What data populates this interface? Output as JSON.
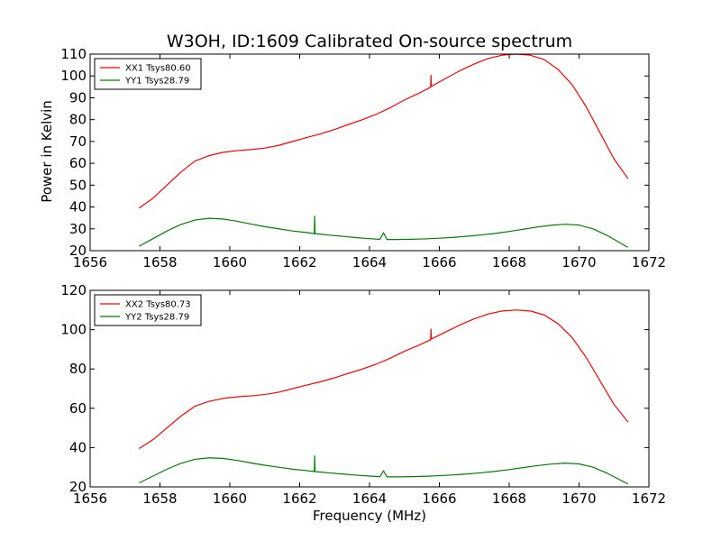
{
  "chart_data": [
    {
      "type": "line",
      "title": "W3OH, ID:1609 Calibrated On-source spectrum",
      "xlabel": "",
      "ylabel": "Power in Kelvin",
      "xlim": [
        1656,
        1672
      ],
      "ylim": [
        20,
        110
      ],
      "xticks": [
        1656,
        1658,
        1660,
        1662,
        1664,
        1666,
        1668,
        1670,
        1672
      ],
      "yticks": [
        20,
        30,
        40,
        50,
        60,
        70,
        80,
        90,
        100,
        110
      ],
      "grid": false,
      "legend": "top-left",
      "series": [
        {
          "name": "XX1 Tsys80.60",
          "color": "#ff0000",
          "x": [
            1657.4,
            1657.8,
            1658.2,
            1658.6,
            1659.0,
            1659.4,
            1659.8,
            1660.2,
            1660.6,
            1661.0,
            1661.4,
            1661.8,
            1662.2,
            1662.6,
            1663.0,
            1663.4,
            1663.8,
            1664.2,
            1664.6,
            1665.0,
            1665.4,
            1665.75,
            1665.76,
            1665.77,
            1665.8,
            1666.2,
            1666.6,
            1667.0,
            1667.4,
            1667.8,
            1668.2,
            1668.6,
            1669.0,
            1669.4,
            1669.8,
            1670.2,
            1670.6,
            1671.0,
            1671.4
          ],
          "y": [
            39.5,
            44,
            50,
            56,
            61,
            63.5,
            65,
            65.8,
            66.3,
            67,
            68.2,
            70,
            71.8,
            73.5,
            75.5,
            77.8,
            80,
            82.5,
            85.5,
            89,
            92,
            94.8,
            100.3,
            95.2,
            95.5,
            99,
            102.5,
            105.5,
            108,
            109.5,
            110,
            109.5,
            107.5,
            103,
            96,
            86,
            74,
            62,
            53
          ]
        },
        {
          "name": "YY1 Tsys28.79",
          "color": "#008000",
          "x": [
            1657.4,
            1657.8,
            1658.2,
            1658.6,
            1659.0,
            1659.4,
            1659.8,
            1660.2,
            1660.6,
            1661.0,
            1661.4,
            1661.8,
            1662.2,
            1662.42,
            1662.43,
            1662.44,
            1662.8,
            1663.2,
            1663.6,
            1664.0,
            1664.3,
            1664.4,
            1664.5,
            1664.8,
            1665.2,
            1665.6,
            1666.0,
            1666.4,
            1666.8,
            1667.2,
            1667.6,
            1668.0,
            1668.4,
            1668.8,
            1669.2,
            1669.6,
            1670.0,
            1670.4,
            1670.8,
            1671.4
          ],
          "y": [
            22,
            25.5,
            29,
            32,
            34,
            34.8,
            34.5,
            33.5,
            32.2,
            31,
            30,
            29,
            28.3,
            27.8,
            35.8,
            27.8,
            27.2,
            26.6,
            26,
            25.5,
            25.2,
            28.2,
            25.1,
            25.1,
            25.2,
            25.4,
            25.7,
            26.1,
            26.6,
            27.2,
            27.9,
            28.8,
            29.8,
            30.8,
            31.6,
            32.1,
            31.7,
            30,
            27,
            21.5
          ]
        }
      ]
    },
    {
      "type": "line",
      "title": "",
      "xlabel": "Frequency (MHz)",
      "ylabel": "",
      "xlim": [
        1656,
        1672
      ],
      "ylim": [
        20,
        120
      ],
      "xticks": [
        1656,
        1658,
        1660,
        1662,
        1664,
        1666,
        1668,
        1670,
        1672
      ],
      "yticks": [
        20,
        40,
        60,
        80,
        100,
        120
      ],
      "grid": false,
      "legend": "top-left",
      "series": [
        {
          "name": "XX2 Tsys80.73",
          "color": "#ff0000",
          "x": [
            1657.4,
            1657.8,
            1658.2,
            1658.6,
            1659.0,
            1659.4,
            1659.8,
            1660.2,
            1660.6,
            1661.0,
            1661.4,
            1661.8,
            1662.2,
            1662.6,
            1663.0,
            1663.4,
            1663.8,
            1664.2,
            1664.6,
            1665.0,
            1665.4,
            1665.75,
            1665.76,
            1665.77,
            1665.8,
            1666.2,
            1666.6,
            1667.0,
            1667.4,
            1667.8,
            1668.2,
            1668.6,
            1669.0,
            1669.4,
            1669.8,
            1670.2,
            1670.6,
            1671.0,
            1671.4
          ],
          "y": [
            39.5,
            44,
            50,
            56,
            61,
            63.5,
            65,
            65.8,
            66.3,
            67,
            68.2,
            70,
            71.8,
            73.5,
            75.5,
            77.8,
            80,
            82.5,
            85.5,
            89,
            92,
            94.8,
            100.3,
            95.2,
            95.5,
            99,
            102.5,
            105.5,
            108,
            109.5,
            110,
            109.5,
            107.5,
            103,
            96,
            86,
            74,
            62,
            53
          ]
        },
        {
          "name": "YY2 Tsys28.79",
          "color": "#008000",
          "x": [
            1657.4,
            1657.8,
            1658.2,
            1658.6,
            1659.0,
            1659.4,
            1659.8,
            1660.2,
            1660.6,
            1661.0,
            1661.4,
            1661.8,
            1662.2,
            1662.42,
            1662.43,
            1662.44,
            1662.8,
            1663.2,
            1663.6,
            1664.0,
            1664.3,
            1664.4,
            1664.5,
            1664.8,
            1665.2,
            1665.6,
            1666.0,
            1666.4,
            1666.8,
            1667.2,
            1667.6,
            1668.0,
            1668.4,
            1668.8,
            1669.2,
            1669.6,
            1670.0,
            1670.4,
            1670.8,
            1671.4
          ],
          "y": [
            22,
            25.5,
            29,
            32,
            34,
            34.8,
            34.5,
            33.5,
            32.2,
            31,
            30,
            29,
            28.3,
            27.8,
            35.8,
            27.8,
            27.2,
            26.6,
            26,
            25.5,
            25.2,
            28.2,
            25.1,
            25.1,
            25.2,
            25.4,
            25.7,
            26.1,
            26.6,
            27.2,
            27.9,
            28.8,
            29.8,
            30.8,
            31.6,
            32.1,
            31.7,
            30,
            27,
            21.5
          ]
        }
      ]
    }
  ]
}
